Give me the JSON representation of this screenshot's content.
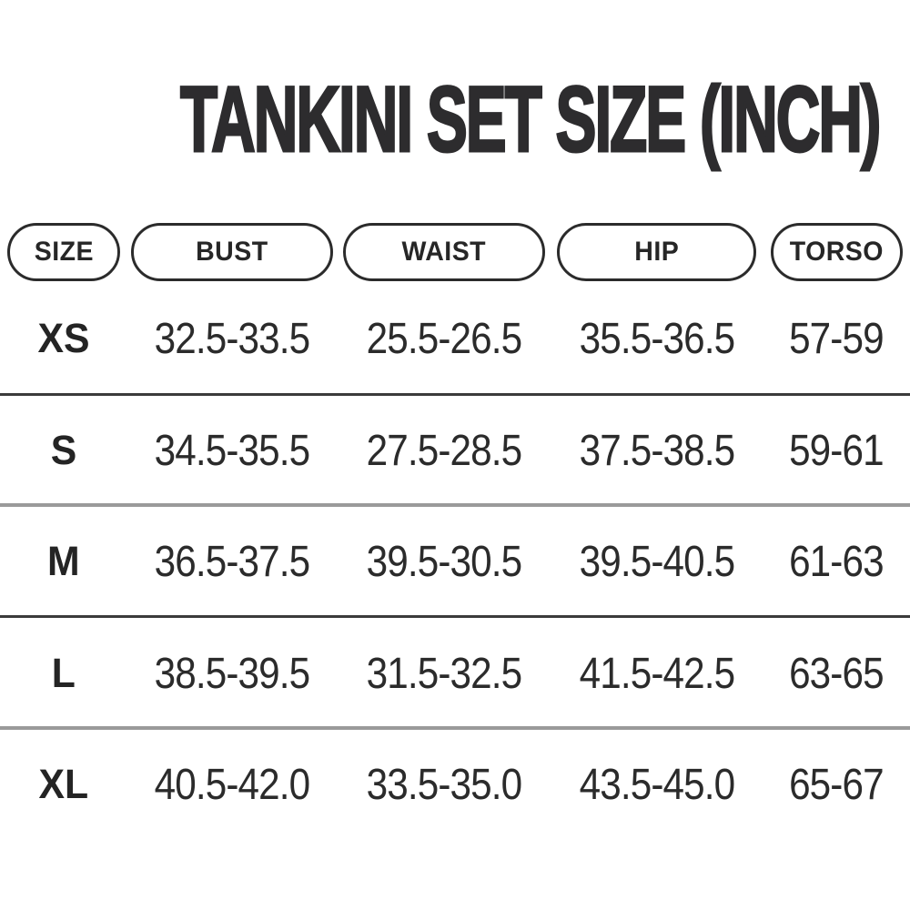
{
  "page": {
    "title": "TANKINI SET SIZE (INCH)"
  },
  "table": {
    "columns": [
      "SIZE",
      "BUST",
      "WAIST",
      "HIP",
      "TORSO"
    ],
    "rows": [
      {
        "size": "XS",
        "bust": "32.5-33.5",
        "waist": "25.5-26.5",
        "hip": "35.5-36.5",
        "torso": "57-59"
      },
      {
        "size": "S",
        "bust": "34.5-35.5",
        "waist": "27.5-28.5",
        "hip": "37.5-38.5",
        "torso": "59-61"
      },
      {
        "size": "M",
        "bust": "36.5-37.5",
        "waist": "39.5-30.5",
        "hip": "39.5-40.5",
        "torso": "61-63"
      },
      {
        "size": "L",
        "bust": "38.5-39.5",
        "waist": "31.5-32.5",
        "hip": "41.5-42.5",
        "torso": "63-65"
      },
      {
        "size": "XL",
        "bust": "40.5-42.0",
        "waist": "33.5-35.0",
        "hip": "43.5-45.0",
        "torso": "65-67"
      }
    ]
  },
  "colors": {
    "background": "#ffffff",
    "title_text": "#2d2c2e",
    "body_text": "#2b2b2b",
    "pill_border": "#2b2b2b",
    "divider_dark": "#3b3b3b",
    "divider_light": "#9a9a9a"
  },
  "chart_data": {
    "type": "table",
    "title": "TANKINI SET SIZE (INCH)",
    "units": "inch",
    "columns": [
      "SIZE",
      "BUST",
      "WAIST",
      "HIP",
      "TORSO"
    ],
    "rows": [
      [
        "XS",
        "32.5-33.5",
        "25.5-26.5",
        "35.5-36.5",
        "57-59"
      ],
      [
        "S",
        "34.5-35.5",
        "27.5-28.5",
        "37.5-38.5",
        "59-61"
      ],
      [
        "M",
        "36.5-37.5",
        "39.5-30.5",
        "39.5-40.5",
        "61-63"
      ],
      [
        "L",
        "38.5-39.5",
        "31.5-32.5",
        "41.5-42.5",
        "63-65"
      ],
      [
        "XL",
        "40.5-42.0",
        "33.5-35.0",
        "43.5-45.0",
        "65-67"
      ]
    ]
  }
}
